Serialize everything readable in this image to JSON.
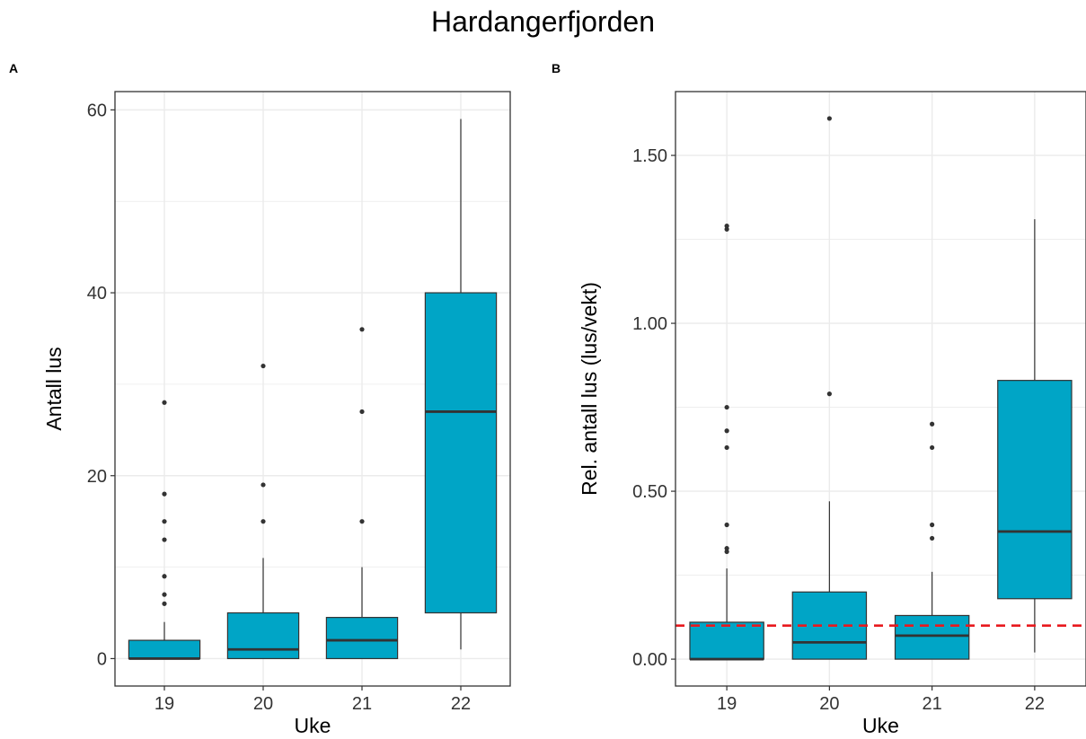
{
  "title": "Hardangerfjorden",
  "colors": {
    "box_fill": "#00A5C6",
    "box_stroke": "#333333",
    "grid": "#EBEBEB",
    "reference_line": "#E8191E"
  },
  "chart_data": [
    {
      "panel": "A",
      "type": "box",
      "xlabel": "Uke",
      "ylabel": "Antall lus",
      "categories": [
        "19",
        "20",
        "21",
        "22"
      ],
      "ylim": [
        -3,
        62
      ],
      "yticks": [
        0,
        20,
        40,
        60
      ],
      "yticklabels": [
        "0",
        "20",
        "40",
        "60"
      ],
      "grid": true,
      "boxes": [
        {
          "category": "19",
          "whisker_low": 0,
          "q1": 0,
          "median": 0,
          "q3": 2,
          "whisker_high": 4,
          "outliers": [
            6,
            7,
            9,
            13,
            15,
            18,
            28
          ]
        },
        {
          "category": "20",
          "whisker_low": 0,
          "q1": 0,
          "median": 1,
          "q3": 5,
          "whisker_high": 11,
          "outliers": [
            15,
            19,
            32
          ]
        },
        {
          "category": "21",
          "whisker_low": 0,
          "q1": 0,
          "median": 2,
          "q3": 4.5,
          "whisker_high": 10,
          "outliers": [
            15,
            27,
            36
          ]
        },
        {
          "category": "22",
          "whisker_low": 1,
          "q1": 5,
          "median": 27,
          "q3": 40,
          "whisker_high": 59,
          "outliers": []
        }
      ]
    },
    {
      "panel": "B",
      "type": "box",
      "xlabel": "Uke",
      "ylabel": "Rel. antall lus (lus/vekt)",
      "categories": [
        "19",
        "20",
        "21",
        "22"
      ],
      "ylim": [
        -0.08,
        1.69
      ],
      "yticks": [
        0,
        0.5,
        1.0,
        1.5
      ],
      "yticklabels": [
        "0.00",
        "0.50",
        "1.00",
        "1.50"
      ],
      "grid": true,
      "reference_line": {
        "y": 0.1,
        "style": "dashed"
      },
      "boxes": [
        {
          "category": "19",
          "whisker_low": 0,
          "q1": 0,
          "median": 0,
          "q3": 0.11,
          "whisker_high": 0.27,
          "outliers": [
            0.32,
            0.33,
            0.4,
            0.63,
            0.68,
            0.75,
            1.28,
            1.29
          ]
        },
        {
          "category": "20",
          "whisker_low": 0,
          "q1": 0,
          "median": 0.05,
          "q3": 0.2,
          "whisker_high": 0.47,
          "outliers": [
            0.79,
            1.61
          ]
        },
        {
          "category": "21",
          "whisker_low": 0,
          "q1": 0,
          "median": 0.07,
          "q3": 0.13,
          "whisker_high": 0.26,
          "outliers": [
            0.36,
            0.4,
            0.63,
            0.7
          ]
        },
        {
          "category": "22",
          "whisker_low": 0.02,
          "q1": 0.18,
          "median": 0.38,
          "q3": 0.83,
          "whisker_high": 1.31,
          "outliers": []
        }
      ]
    }
  ]
}
